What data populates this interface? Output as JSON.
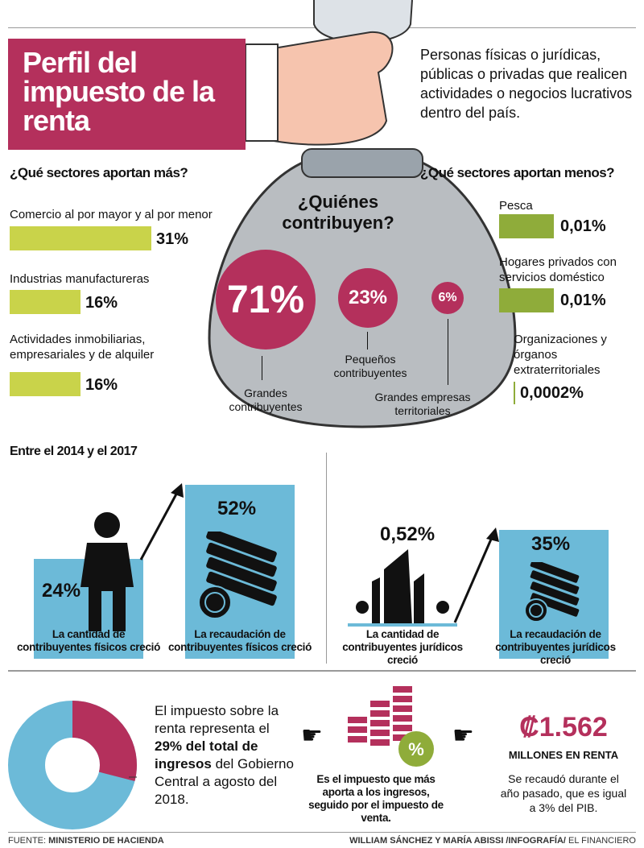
{
  "title": "Perfil del impuesto de la renta",
  "intro": "Personas físicas o jurídicas, públicas o privadas que realicen actividades o negocios lucrativos dentro del país.",
  "bag_title": "¿Quiénes contribuyen?",
  "more": {
    "heading": "¿Qué sectores aportan más?",
    "items": [
      {
        "label": "Comercio al por mayor y al por menor",
        "value": "31%",
        "pct": 31
      },
      {
        "label": "Industrias manufactureras",
        "value": "16%",
        "pct": 16
      },
      {
        "label": "Actividades inmobiliarias, empresariales y de alquiler",
        "value": "16%",
        "pct": 16
      }
    ]
  },
  "less": {
    "heading": "¿Qué sectores aportan menos?",
    "items": [
      {
        "label": "Pesca",
        "value": "0,01%"
      },
      {
        "label": "Hogares privados con servicios doméstico",
        "value": "0,01%"
      },
      {
        "label": "Organizaciones y órganos extraterritoriales",
        "value": "0,0002%"
      }
    ]
  },
  "contributors": [
    {
      "value": "71%",
      "label": "Grandes contribuyentes"
    },
    {
      "value": "23%",
      "label": "Pequeños contribuyentes"
    },
    {
      "value": "6%",
      "label": "Grandes empresas territoriales"
    }
  ],
  "growth": {
    "heading": "Entre el 2014 y el 2017",
    "items": [
      {
        "value": "24%",
        "label": "La cantidad de contribuyentes físicos creció"
      },
      {
        "value": "52%",
        "label": "La recaudación de contribuyentes físicos creció"
      },
      {
        "value": "0,52%",
        "label": "La cantidad de contribuyentes jurídicos creció"
      },
      {
        "value": "35%",
        "label": "La recaudación de contribuyentes jurídicos creció"
      }
    ]
  },
  "share": {
    "pre": "El impuesto sobre la renta representa el ",
    "bold1": "29% del total de ingresos",
    "post": " del Gobierno Central a agosto del 2018.",
    "pct": 29
  },
  "middle": "Es el impuesto que más aporta a los ingresos, seguido por el impuesto de venta.",
  "amount": {
    "value": "₡1.562",
    "unit": "MILLONES EN RENTA",
    "note": "Se recaudó durante el año pasado, que es igual a 3% del PIB."
  },
  "footer": {
    "source_label": "FUENTE: ",
    "source": "MINISTERIO DE HACIENDA",
    "credits": "WILLIAM SÁNCHEZ Y MARÍA ABISSI /INFOGRAFÍA/ ",
    "outlet": "EL FINANCIERO"
  },
  "colors": {
    "magenta": "#b4305c",
    "lime": "#c9d34a",
    "green": "#8fac3a",
    "blue": "#6cbad8"
  }
}
